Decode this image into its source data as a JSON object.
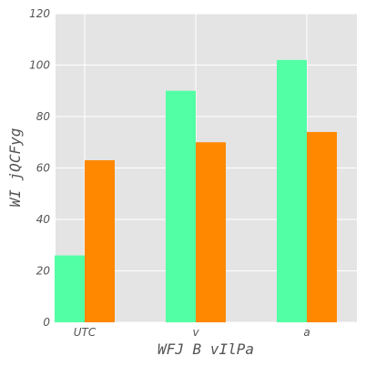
{
  "chart_data": {
    "type": "bar",
    "categories": [
      "UTC",
      "v",
      "a"
    ],
    "series": [
      {
        "values": [
          26,
          90,
          102
        ],
        "color": "#52ffa4"
      },
      {
        "values": [
          63,
          70,
          74
        ],
        "color": "#ff8800"
      }
    ],
    "xlabel": "WFJ B vIlPa",
    "ylabel": "WI  jQCFyg",
    "ylim": [
      0,
      120
    ],
    "yticks": [
      0,
      20,
      40,
      60,
      80,
      100,
      120
    ],
    "grid": true,
    "background": "#e4e4e4",
    "grid_color": "#ffffff"
  }
}
